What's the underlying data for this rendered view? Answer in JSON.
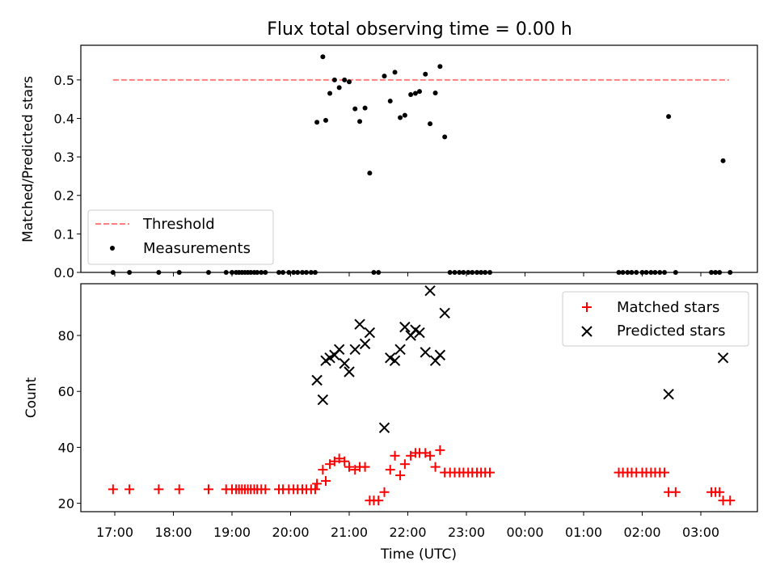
{
  "chart_data": [
    {
      "type": "scatter",
      "title": "Flux total observing time = 0.00 h",
      "ylabel": "Matched/Predicted stars",
      "xlabel": "",
      "ylim": [
        0,
        0.59
      ],
      "yticks": [
        "0.0",
        "0.1",
        "0.2",
        "0.3",
        "0.4",
        "0.5"
      ],
      "grid": false,
      "legend_position": "lower-left",
      "threshold": {
        "name": "Threshold",
        "y": 0.5,
        "x_range": [
          -0.03,
          10.48
        ],
        "color": "#ff7f7f",
        "style": "dashed"
      },
      "series": [
        {
          "name": "Measurements",
          "color": "#000000",
          "marker": "dot",
          "points": [
            [
              -0.03,
              0
            ],
            [
              0.25,
              0
            ],
            [
              0.75,
              0
            ],
            [
              1.1,
              0
            ],
            [
              1.6,
              0
            ],
            [
              1.9,
              0
            ],
            [
              2.0,
              0
            ],
            [
              2.07,
              0
            ],
            [
              2.12,
              0
            ],
            [
              2.17,
              0
            ],
            [
              2.22,
              0
            ],
            [
              2.27,
              0
            ],
            [
              2.32,
              0
            ],
            [
              2.38,
              0
            ],
            [
              2.43,
              0
            ],
            [
              2.5,
              0
            ],
            [
              2.57,
              0
            ],
            [
              2.8,
              0
            ],
            [
              2.87,
              0
            ],
            [
              2.97,
              0
            ],
            [
              3.05,
              0
            ],
            [
              3.12,
              0
            ],
            [
              3.2,
              0
            ],
            [
              3.27,
              0
            ],
            [
              3.35,
              0
            ],
            [
              3.42,
              0
            ],
            [
              3.45,
              0.39
            ],
            [
              3.55,
              0.56
            ],
            [
              3.6,
              0.395
            ],
            [
              3.67,
              0.465
            ],
            [
              3.75,
              0.5
            ],
            [
              3.83,
              0.48
            ],
            [
              3.92,
              0.5
            ],
            [
              4.0,
              0.495
            ],
            [
              4.1,
              0.425
            ],
            [
              4.18,
              0.392
            ],
            [
              4.27,
              0.427
            ],
            [
              4.35,
              0.258
            ],
            [
              4.42,
              0
            ],
            [
              4.5,
              0
            ],
            [
              4.6,
              0.51
            ],
            [
              4.7,
              0.445
            ],
            [
              4.78,
              0.52
            ],
            [
              4.87,
              0.402
            ],
            [
              4.95,
              0.408
            ],
            [
              5.05,
              0.462
            ],
            [
              5.13,
              0.465
            ],
            [
              5.2,
              0.47
            ],
            [
              5.3,
              0.515
            ],
            [
              5.38,
              0.386
            ],
            [
              5.47,
              0.466
            ],
            [
              5.55,
              0.535
            ],
            [
              5.63,
              0.352
            ],
            [
              5.72,
              0
            ],
            [
              5.8,
              0
            ],
            [
              5.88,
              0
            ],
            [
              5.95,
              0
            ],
            [
              6.03,
              0
            ],
            [
              6.1,
              0
            ],
            [
              6.18,
              0
            ],
            [
              6.25,
              0
            ],
            [
              6.32,
              0
            ],
            [
              6.4,
              0
            ],
            [
              8.6,
              0
            ],
            [
              8.67,
              0
            ],
            [
              8.75,
              0
            ],
            [
              8.82,
              0
            ],
            [
              8.9,
              0
            ],
            [
              9.0,
              0
            ],
            [
              9.07,
              0
            ],
            [
              9.15,
              0
            ],
            [
              9.22,
              0
            ],
            [
              9.3,
              0
            ],
            [
              9.38,
              0
            ],
            [
              9.45,
              0.405
            ],
            [
              9.57,
              0
            ],
            [
              10.18,
              0
            ],
            [
              10.25,
              0
            ],
            [
              10.32,
              0
            ],
            [
              10.38,
              0.29
            ],
            [
              10.5,
              0
            ]
          ]
        }
      ],
      "legend": [
        {
          "label": "Threshold",
          "kind": "dashed-line",
          "color": "#ff7f7f"
        },
        {
          "label": "Measurements",
          "kind": "dot",
          "color": "#000000"
        }
      ]
    },
    {
      "type": "scatter",
      "title": "",
      "ylabel": "Count",
      "xlabel": "Time (UTC)",
      "ylim": [
        17,
        98.5
      ],
      "yticks": [
        "20",
        "40",
        "60",
        "80"
      ],
      "xticks": [
        "17:00",
        "18:00",
        "19:00",
        "20:00",
        "21:00",
        "22:00",
        "23:00",
        "00:00",
        "01:00",
        "02:00",
        "03:00"
      ],
      "grid": false,
      "legend_position": "top-right",
      "series": [
        {
          "name": "Matched stars",
          "color": "#ff0000",
          "marker": "plus",
          "points": [
            [
              -0.03,
              25
            ],
            [
              0.25,
              25
            ],
            [
              0.75,
              25
            ],
            [
              1.1,
              25
            ],
            [
              1.6,
              25
            ],
            [
              1.9,
              25
            ],
            [
              2.0,
              25
            ],
            [
              2.07,
              25
            ],
            [
              2.12,
              25
            ],
            [
              2.17,
              25
            ],
            [
              2.22,
              25
            ],
            [
              2.27,
              25
            ],
            [
              2.32,
              25
            ],
            [
              2.38,
              25
            ],
            [
              2.43,
              25
            ],
            [
              2.5,
              25
            ],
            [
              2.57,
              25
            ],
            [
              2.8,
              25
            ],
            [
              2.87,
              25
            ],
            [
              2.97,
              25
            ],
            [
              3.05,
              25
            ],
            [
              3.12,
              25
            ],
            [
              3.2,
              25
            ],
            [
              3.27,
              25
            ],
            [
              3.35,
              25
            ],
            [
              3.42,
              25
            ],
            [
              3.45,
              27
            ],
            [
              3.55,
              32
            ],
            [
              3.6,
              28
            ],
            [
              3.67,
              34
            ],
            [
              3.75,
              35
            ],
            [
              3.83,
              36
            ],
            [
              3.92,
              35
            ],
            [
              4.0,
              33
            ],
            [
              4.1,
              32
            ],
            [
              4.18,
              33
            ],
            [
              4.27,
              33
            ],
            [
              4.35,
              21
            ],
            [
              4.42,
              21
            ],
            [
              4.5,
              21
            ],
            [
              4.6,
              24
            ],
            [
              4.7,
              32
            ],
            [
              4.78,
              37
            ],
            [
              4.87,
              30
            ],
            [
              4.95,
              34
            ],
            [
              5.05,
              37
            ],
            [
              5.13,
              38
            ],
            [
              5.2,
              38
            ],
            [
              5.3,
              38
            ],
            [
              5.38,
              37
            ],
            [
              5.47,
              33
            ],
            [
              5.55,
              39
            ],
            [
              5.63,
              31
            ],
            [
              5.72,
              31
            ],
            [
              5.8,
              31
            ],
            [
              5.88,
              31
            ],
            [
              5.95,
              31
            ],
            [
              6.03,
              31
            ],
            [
              6.1,
              31
            ],
            [
              6.18,
              31
            ],
            [
              6.25,
              31
            ],
            [
              6.32,
              31
            ],
            [
              6.4,
              31
            ],
            [
              8.6,
              31
            ],
            [
              8.67,
              31
            ],
            [
              8.75,
              31
            ],
            [
              8.82,
              31
            ],
            [
              8.9,
              31
            ],
            [
              9.0,
              31
            ],
            [
              9.07,
              31
            ],
            [
              9.15,
              31
            ],
            [
              9.22,
              31
            ],
            [
              9.3,
              31
            ],
            [
              9.38,
              31
            ],
            [
              9.45,
              24
            ],
            [
              9.57,
              24
            ],
            [
              10.18,
              24
            ],
            [
              10.25,
              24
            ],
            [
              10.32,
              24
            ],
            [
              10.38,
              21
            ],
            [
              10.5,
              21
            ]
          ]
        },
        {
          "name": "Predicted stars",
          "color": "#000000",
          "marker": "x",
          "points": [
            [
              3.45,
              64
            ],
            [
              3.55,
              57
            ],
            [
              3.6,
              71
            ],
            [
              3.67,
              72
            ],
            [
              3.75,
              73
            ],
            [
              3.83,
              75
            ],
            [
              3.92,
              70
            ],
            [
              4.0,
              67
            ],
            [
              4.1,
              75
            ],
            [
              4.18,
              84
            ],
            [
              4.27,
              77
            ],
            [
              4.35,
              81
            ],
            [
              4.6,
              47
            ],
            [
              4.7,
              72
            ],
            [
              4.78,
              71
            ],
            [
              4.87,
              75
            ],
            [
              4.95,
              83
            ],
            [
              5.05,
              80
            ],
            [
              5.13,
              82
            ],
            [
              5.2,
              81
            ],
            [
              5.3,
              74
            ],
            [
              5.38,
              96
            ],
            [
              5.47,
              71
            ],
            [
              5.55,
              73
            ],
            [
              5.63,
              88
            ],
            [
              9.45,
              59
            ],
            [
              10.38,
              72
            ]
          ]
        }
      ],
      "legend": [
        {
          "label": "Matched stars",
          "kind": "plus",
          "color": "#ff0000"
        },
        {
          "label": "Predicted stars",
          "kind": "x",
          "color": "#000000"
        }
      ]
    }
  ]
}
